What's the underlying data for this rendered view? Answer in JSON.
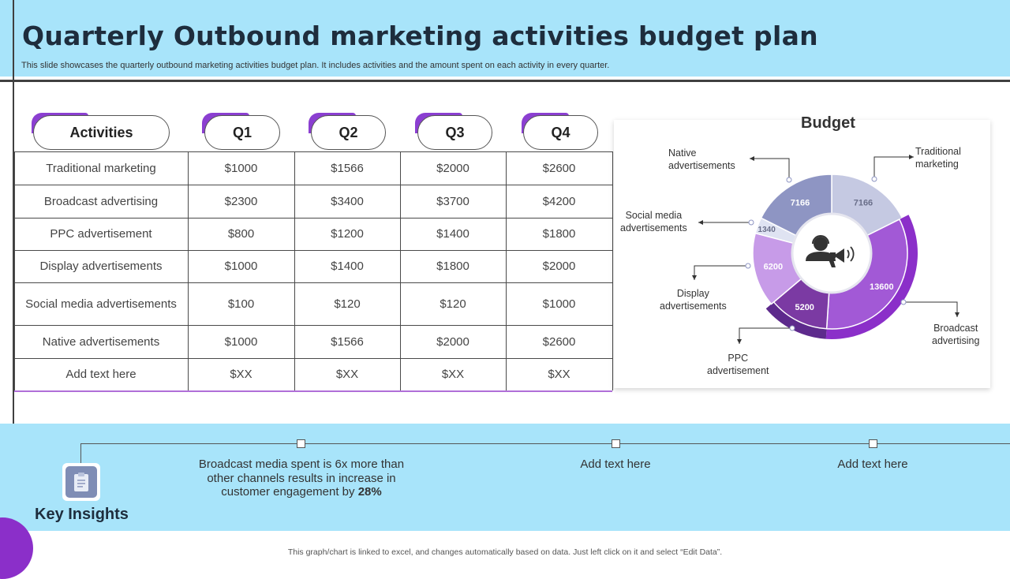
{
  "header": {
    "title": "Quarterly Outbound marketing activities budget plan",
    "subtitle": "This slide showcases the quarterly outbound marketing activities budget plan. It includes activities and the amount spent on each activity  in every  quarter."
  },
  "table": {
    "headers": [
      "Activities",
      "Q1",
      "Q2",
      "Q3",
      "Q4"
    ],
    "rows": [
      [
        "Traditional marketing",
        "$1000",
        "$1566",
        "$2000",
        "$2600"
      ],
      [
        "Broadcast advertising",
        "$2300",
        "$3400",
        "$3700",
        "$4200"
      ],
      [
        "PPC advertisement",
        "$800",
        "$1200",
        "$1400",
        "$1800"
      ],
      [
        "Display advertisements",
        "$1000",
        "$1400",
        "$1800",
        "$2000"
      ],
      [
        "Social media advertisements",
        "$100",
        "$120",
        "$120",
        "$1000"
      ],
      [
        "Native  advertisements",
        "$1000",
        "$1566",
        "$2000",
        "$2600"
      ],
      [
        "Add text here",
        "$XX",
        "$XX",
        "$XX",
        "$XX"
      ]
    ]
  },
  "chart_data": {
    "type": "pie",
    "title": "Budget",
    "slices": [
      {
        "label": "Traditional marketing",
        "value": 7166,
        "value_label": "7166",
        "color": "#c5c9e2"
      },
      {
        "label": "Broadcast advertising",
        "value": 13600,
        "value_label": "13600",
        "color": "#a259d6"
      },
      {
        "label": "PPC advertisement",
        "value": 5200,
        "value_label": "5200",
        "color": "#7b3aa3"
      },
      {
        "label": "Display advertisements",
        "value": 6200,
        "value_label": "6200",
        "color": "#c79be8"
      },
      {
        "label": "Social media advertisements",
        "value": 1340,
        "value_label": "1340",
        "color": "#dfe3f2"
      },
      {
        "label": "Native advertisements",
        "value": 7166,
        "value_label": "7166",
        "color": "#8e95c3"
      }
    ],
    "callouts": {
      "native": [
        "Native",
        "advertisements"
      ],
      "traditional": [
        "Traditional",
        "marketing"
      ],
      "social": [
        "Social media",
        "advertisements"
      ],
      "display": [
        "Display",
        "advertisements"
      ],
      "ppc": [
        "PPC",
        "advertisement"
      ],
      "broadcast": [
        "Broadcast",
        "advertising"
      ]
    }
  },
  "insights": {
    "label": "Key Insights",
    "item1_text": "Broadcast media spent is 6x more than other channels results in increase in customer engagement by ",
    "item1_bold": "28%",
    "item2": "Add text here",
    "item3": "Add text here"
  },
  "footer": "This graph/chart is linked to excel, and changes automatically based on data.  Just left click on it and select “Edit Data”."
}
